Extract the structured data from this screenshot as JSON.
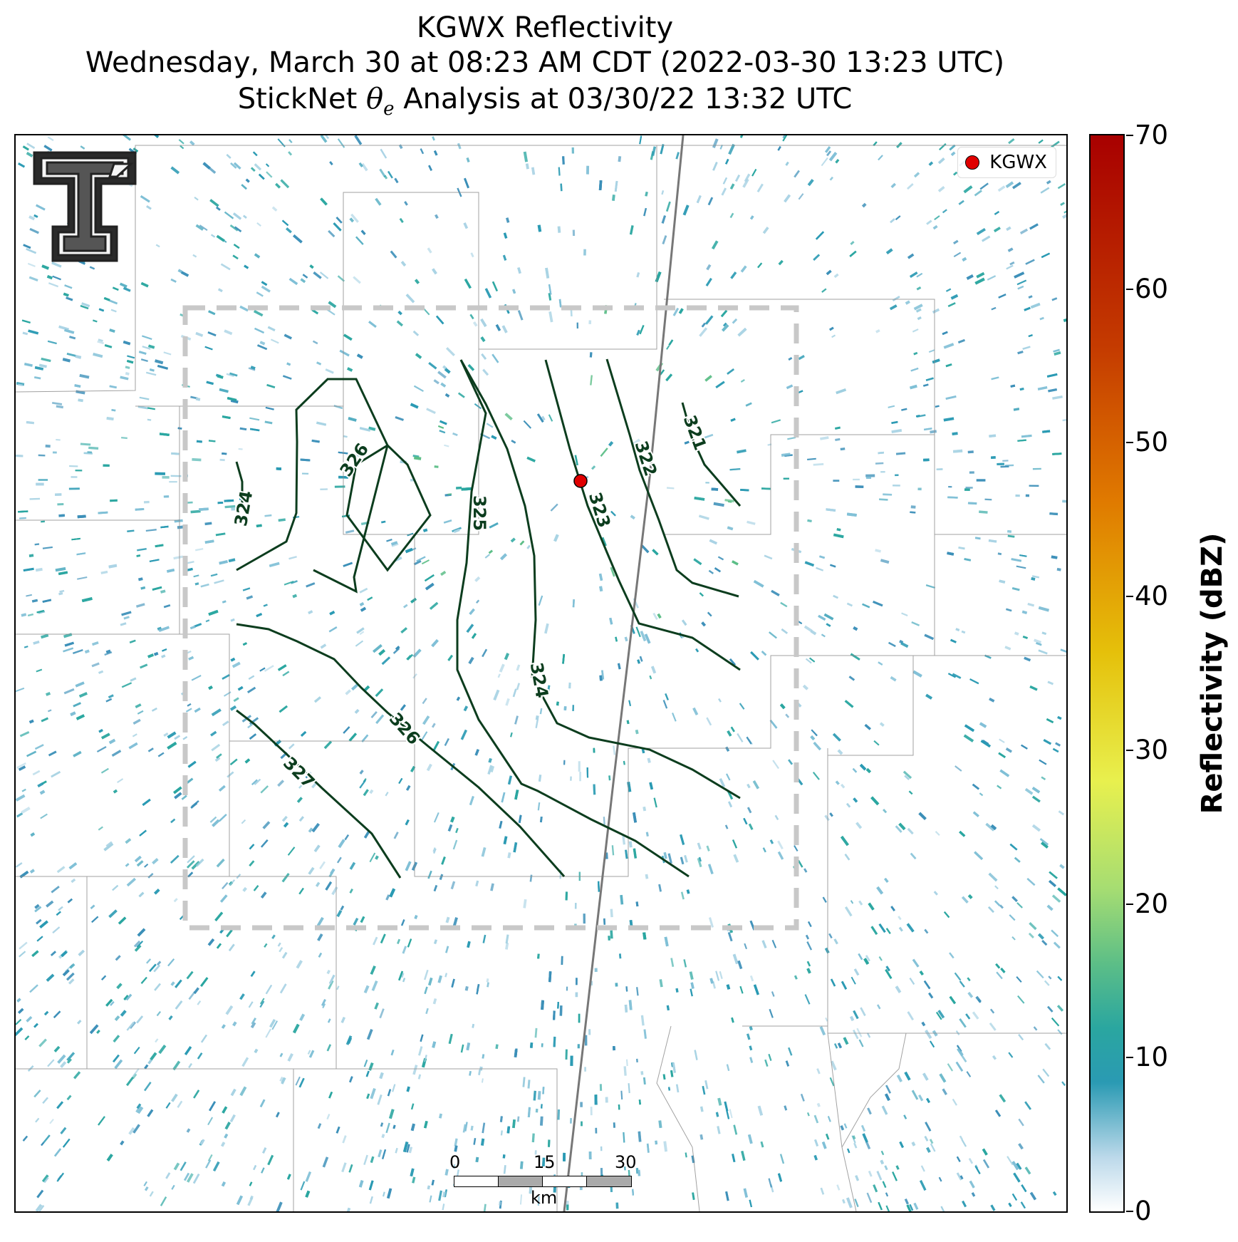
{
  "title": {
    "line1": "KGWX Reflectivity",
    "line2": "Wednesday, March 30 at 08:23 AM CDT (2022-03-30 13:23 UTC)",
    "line3_prefix": "StickNet ",
    "line3_symbol": "θ",
    "line3_sub": "e",
    "line3_suffix": " Analysis at 03/30/22 13:32 UTC"
  },
  "legend": {
    "label": "KGWX",
    "marker_color": "#e00000"
  },
  "contours": {
    "color": "#0c3d1e",
    "labels": [
      "321",
      "322",
      "323",
      "324",
      "325",
      "326",
      "324",
      "326",
      "327"
    ]
  },
  "scalebar": {
    "ticks": [
      "0",
      "15",
      "30"
    ],
    "unit": "km"
  },
  "colorbar": {
    "title": "Reflectivity (dBZ)",
    "min": 0,
    "max": 70,
    "ticks": [
      "0",
      "10",
      "20",
      "30",
      "40",
      "50",
      "60",
      "70"
    ]
  },
  "colors": {
    "analysis_box": "#c8c8c8",
    "boundaries": "#8a8a8a",
    "radar_echo": "#2a9ab3"
  }
}
